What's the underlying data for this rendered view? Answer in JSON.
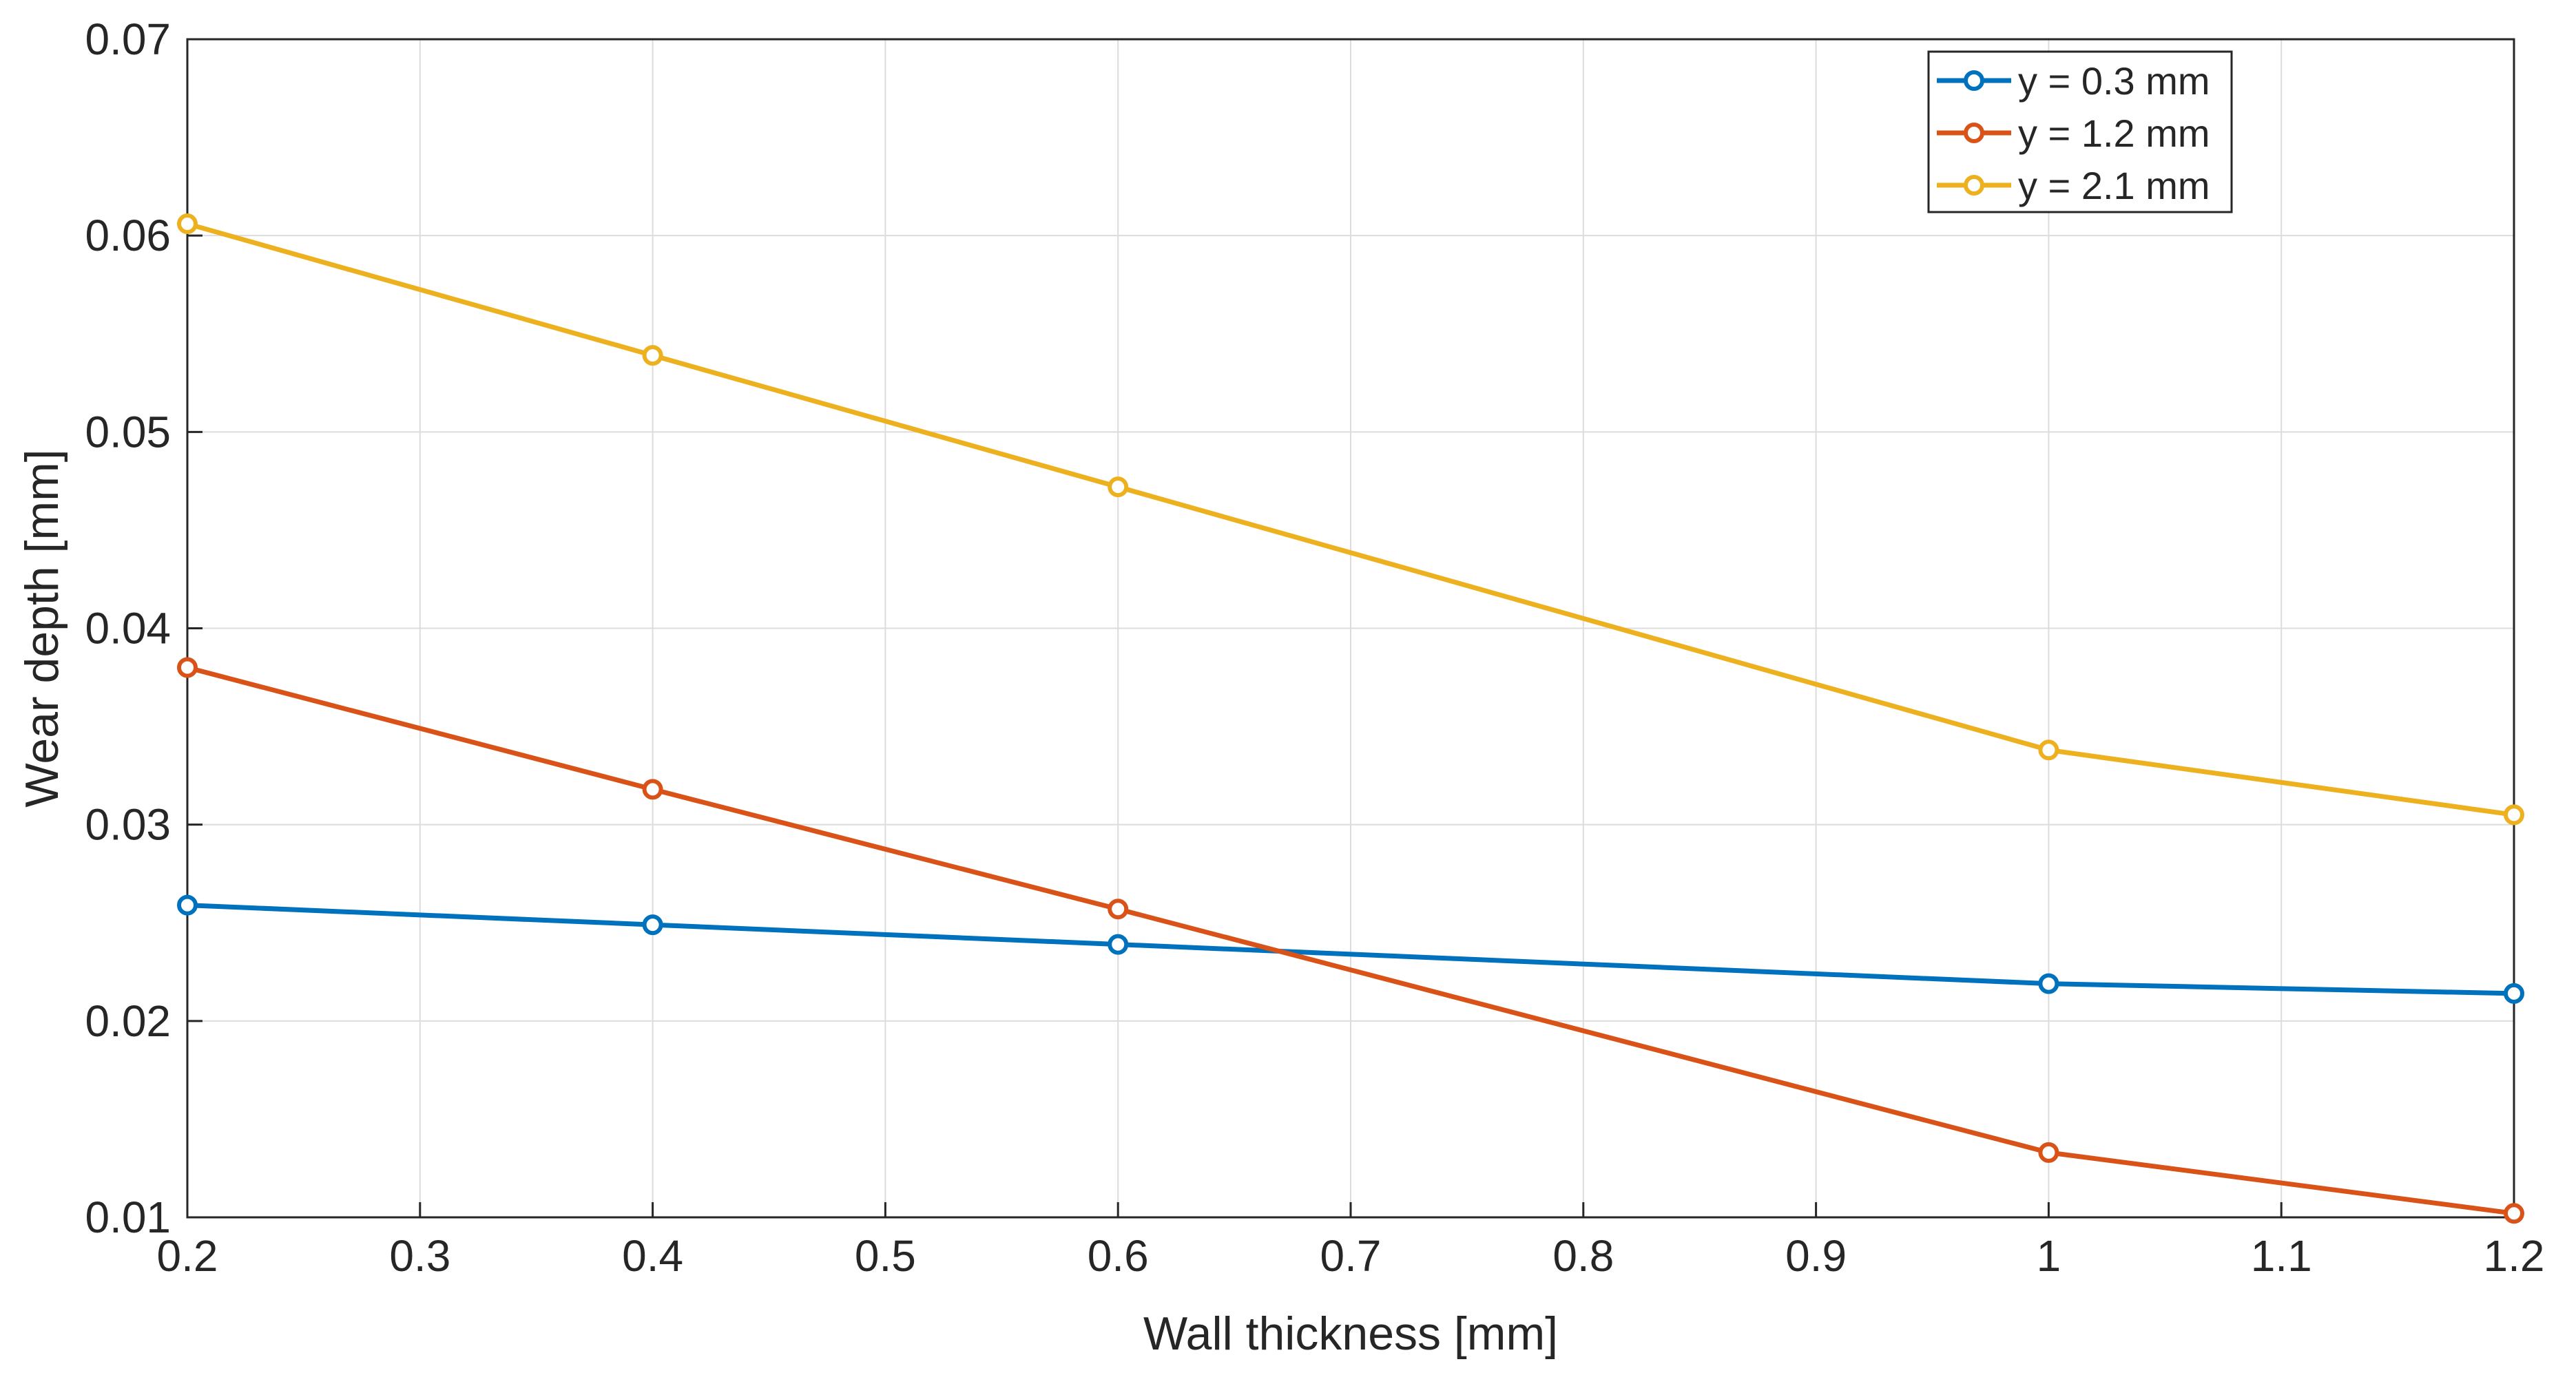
{
  "chart_data": {
    "type": "line",
    "title": "",
    "xlabel": "Wall thickness [mm]",
    "ylabel": "Wear depth [mm]",
    "xlim": [
      0.2,
      1.2
    ],
    "ylim": [
      0.01,
      0.07
    ],
    "xticks": [
      0.2,
      0.3,
      0.4,
      0.5,
      0.6,
      0.7,
      0.8,
      0.9,
      1,
      1.1,
      1.2
    ],
    "xtick_labels": [
      "0.2",
      "0.3",
      "0.4",
      "0.5",
      "0.6",
      "0.7",
      "0.8",
      "0.9",
      "1",
      "1.1",
      "1.2"
    ],
    "yticks": [
      0.01,
      0.02,
      0.03,
      0.04,
      0.05,
      0.06,
      0.07
    ],
    "ytick_labels": [
      "0.01",
      "0.02",
      "0.03",
      "0.04",
      "0.05",
      "0.06",
      "0.07"
    ],
    "grid": true,
    "legend_position": "top-right",
    "x": [
      0.2,
      0.4,
      0.6,
      1.0,
      1.2
    ],
    "series": [
      {
        "name": "y = 0.3 mm",
        "color": "#0072BD",
        "marker": "circle",
        "values": [
          0.0259,
          0.0249,
          0.0239,
          0.0219,
          0.0214
        ]
      },
      {
        "name": "y = 1.2 mm",
        "color": "#D95319",
        "marker": "circle",
        "values": [
          0.038,
          0.0318,
          0.0257,
          0.0133,
          0.0102
        ]
      },
      {
        "name": "y = 2.1 mm",
        "color": "#EDB120",
        "marker": "circle",
        "values": [
          0.0606,
          0.0539,
          0.0472,
          0.0338,
          0.0305
        ]
      }
    ]
  }
}
